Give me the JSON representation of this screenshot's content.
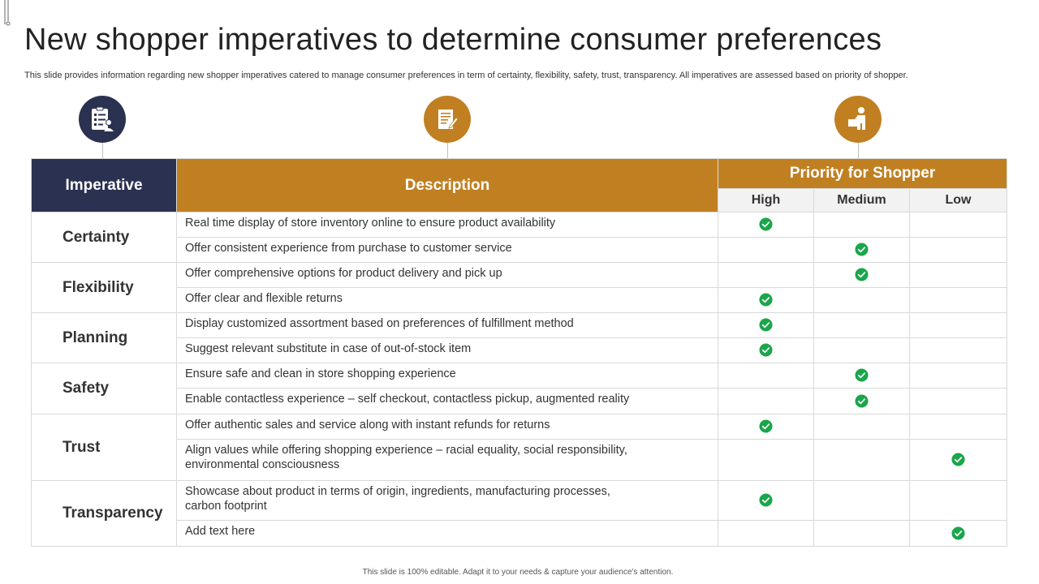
{
  "title": "New shopper imperatives to determine consumer preferences",
  "subtitle": "This slide provides information regarding new shopper imperatives catered to manage consumer preferences in term of certainty, flexibility, safety, trust, transparency. All imperatives are assessed based on priority of shopper.",
  "icons": [
    {
      "name": "checklist-icon",
      "color": "#2b3150"
    },
    {
      "name": "document-pen-icon",
      "color": "#c08022"
    },
    {
      "name": "person-box-icon",
      "color": "#c08022"
    }
  ],
  "table": {
    "headers": {
      "imperative": "Imperative",
      "description": "Description",
      "priority": "Priority for Shopper",
      "levels": [
        "High",
        "Medium",
        "Low"
      ]
    },
    "groups": [
      {
        "imperative": "Certainty",
        "rows": [
          {
            "description": "Real time display of store inventory online to ensure product availability",
            "priority": "High"
          },
          {
            "description": "Offer consistent experience from purchase to customer service",
            "priority": "Medium"
          }
        ]
      },
      {
        "imperative": "Flexibility",
        "rows": [
          {
            "description": "Offer comprehensive options for product delivery and pick up",
            "priority": "Medium"
          },
          {
            "description": "Offer clear and flexible returns",
            "priority": "High"
          }
        ]
      },
      {
        "imperative": "Planning",
        "rows": [
          {
            "description": "Display customized assortment based on preferences of fulfillment method",
            "priority": "High"
          },
          {
            "description": "Suggest relevant substitute in case of out-of-stock item",
            "priority": "High"
          }
        ]
      },
      {
        "imperative": "Safety",
        "rows": [
          {
            "description": "Ensure safe and clean in store shopping experience",
            "priority": "Medium"
          },
          {
            "description": "Enable contactless experience – self checkout, contactless pickup, augmented reality",
            "priority": "Medium"
          }
        ]
      },
      {
        "imperative": "Trust",
        "rows": [
          {
            "description": "Offer authentic sales and service along with instant refunds for returns",
            "priority": "High"
          },
          {
            "description": "Align values while offering shopping experience – racial equality, social responsibility, environmental consciousness",
            "priority": "Low"
          }
        ]
      },
      {
        "imperative": "Transparency",
        "rows": [
          {
            "description": "Showcase about product in terms of origin, ingredients, manufacturing processes, carbon footprint",
            "priority": "High"
          },
          {
            "description": "Add text here",
            "priority": "Low"
          }
        ]
      }
    ]
  },
  "check_color": "#1aa64b",
  "footer": "This slide is 100% editable. Adapt it to your needs & capture your audience's attention."
}
